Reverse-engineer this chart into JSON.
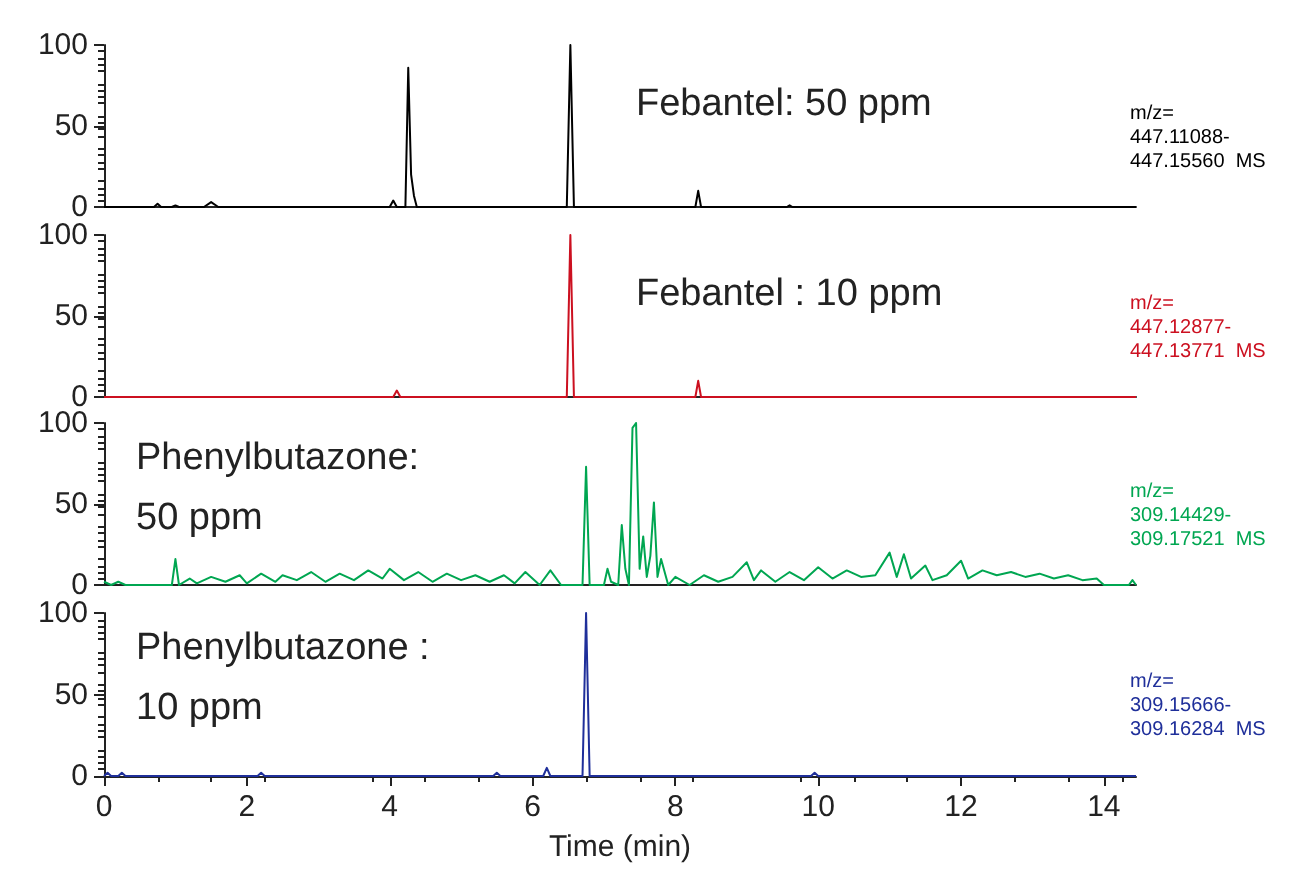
{
  "chart_data": [
    {
      "type": "line",
      "xlim": [
        0,
        14.45
      ],
      "ylim": [
        0,
        100
      ],
      "yticks": [
        0,
        50,
        100
      ],
      "tick_labels": "y",
      "grid": false,
      "marker": "none",
      "line_style": "solid",
      "annotations": [
        "Febantel: 50 ppm",
        "m/z=\n447.11088-\n447.15560  MS"
      ],
      "series": [
        {
          "color": "#000000",
          "x": [
            0,
            0.7,
            0.75,
            0.8,
            0.95,
            1.0,
            1.05,
            1.4,
            1.5,
            1.6,
            4.0,
            4.05,
            4.1,
            4.22,
            4.26,
            4.3,
            4.34,
            4.38,
            4.45,
            6.48,
            6.53,
            6.58,
            8.28,
            8.32,
            8.36,
            9.56,
            9.6,
            9.64,
            14.45
          ],
          "values": [
            0,
            0,
            2,
            0,
            0,
            1,
            0,
            0,
            3,
            0,
            0,
            4,
            0,
            0,
            86,
            20,
            7,
            0,
            0,
            0,
            100,
            0,
            0,
            10,
            0,
            0,
            1,
            0,
            0
          ]
        }
      ]
    },
    {
      "type": "line",
      "xlim": [
        0,
        14.45
      ],
      "ylim": [
        0,
        100
      ],
      "yticks": [
        0,
        50,
        100
      ],
      "tick_labels": "y",
      "grid": false,
      "marker": "none",
      "line_style": "solid",
      "annotations": [
        "Febantel : 10 ppm",
        "m/z=\n447.12877-\n447.13771  MS"
      ],
      "series": [
        {
          "color": "#cc1020",
          "x": [
            0,
            4.05,
            4.1,
            4.15,
            6.48,
            6.53,
            6.58,
            8.28,
            8.32,
            8.36,
            14.45
          ],
          "values": [
            0,
            0,
            4,
            0,
            0,
            100,
            0,
            0,
            10,
            0,
            0
          ]
        }
      ]
    },
    {
      "type": "line",
      "xlim": [
        0,
        14.45
      ],
      "ylim": [
        0,
        100
      ],
      "yticks": [
        0,
        50,
        100
      ],
      "tick_labels": "y",
      "grid": false,
      "marker": "none",
      "line_style": "solid",
      "annotations": [
        "Phenylbutazone:\n50 ppm",
        "m/z=\n309.14429-\n309.17521  MS"
      ],
      "series": [
        {
          "color": "#00a651",
          "x": [
            0,
            0.1,
            0.2,
            0.3,
            0.95,
            1.0,
            1.05,
            1.2,
            1.3,
            1.5,
            1.7,
            1.9,
            2.0,
            2.2,
            2.4,
            2.5,
            2.7,
            2.9,
            3.1,
            3.3,
            3.5,
            3.7,
            3.9,
            4.0,
            4.2,
            4.4,
            4.6,
            4.8,
            5.0,
            5.2,
            5.4,
            5.6,
            5.75,
            5.9,
            6.1,
            6.25,
            6.4,
            6.7,
            6.75,
            6.8,
            7.0,
            7.05,
            7.1,
            7.2,
            7.25,
            7.3,
            7.35,
            7.4,
            7.45,
            7.5,
            7.55,
            7.6,
            7.65,
            7.7,
            7.75,
            7.8,
            7.9,
            8.0,
            8.2,
            8.4,
            8.6,
            8.8,
            9.0,
            9.1,
            9.2,
            9.4,
            9.6,
            9.8,
            10.0,
            10.2,
            10.4,
            10.6,
            10.8,
            11.0,
            11.1,
            11.2,
            11.3,
            11.5,
            11.6,
            11.8,
            12.0,
            12.1,
            12.3,
            12.5,
            12.7,
            12.9,
            13.1,
            13.3,
            13.5,
            13.7,
            13.9,
            14.0,
            14.35,
            14.4,
            14.45
          ],
          "values": [
            2,
            0,
            2,
            0,
            0,
            16,
            0,
            4,
            1,
            5,
            2,
            6,
            1,
            7,
            2,
            6,
            3,
            8,
            2,
            7,
            3,
            9,
            4,
            10,
            3,
            8,
            2,
            7,
            3,
            6,
            2,
            6,
            1,
            8,
            0,
            9,
            0,
            0,
            73,
            0,
            0,
            10,
            2,
            0,
            37,
            10,
            0,
            97,
            100,
            10,
            30,
            5,
            18,
            51,
            5,
            16,
            0,
            5,
            0,
            6,
            2,
            5,
            14,
            3,
            9,
            2,
            8,
            3,
            11,
            4,
            9,
            5,
            6,
            20,
            5,
            19,
            4,
            12,
            3,
            6,
            15,
            4,
            9,
            6,
            8,
            5,
            7,
            4,
            6,
            3,
            4,
            0,
            0,
            3,
            0
          ]
        }
      ]
    },
    {
      "type": "line",
      "xlim": [
        0,
        14.45
      ],
      "ylim": [
        0,
        100
      ],
      "xticks": [
        0,
        2,
        4,
        6,
        8,
        10,
        12,
        14
      ],
      "yticks": [
        0,
        50,
        100
      ],
      "xlabel": "Time (min)",
      "grid": false,
      "marker": "none",
      "line_style": "solid",
      "annotations": [
        "Phenylbutazone :\n10 ppm",
        "m/z=\n309.15666-\n309.16284  MS"
      ],
      "series": [
        {
          "color": "#1f2f9a",
          "x": [
            0,
            0.05,
            0.1,
            0.2,
            0.25,
            0.3,
            2.15,
            2.2,
            2.25,
            5.45,
            5.5,
            5.55,
            6.15,
            6.2,
            6.25,
            6.7,
            6.75,
            6.8,
            9.9,
            9.95,
            10.0,
            14.45
          ],
          "values": [
            0,
            2,
            0,
            0,
            2,
            0,
            0,
            2,
            0,
            0,
            2,
            0,
            0,
            5,
            0,
            0,
            100,
            0,
            0,
            2,
            0,
            0
          ]
        }
      ]
    }
  ]
}
